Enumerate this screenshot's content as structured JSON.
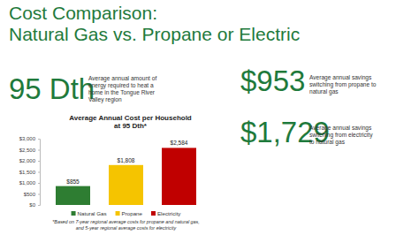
{
  "title": [
    "Cost Comparison:",
    "Natural Gas vs. Propane or Electric"
  ],
  "stats": [
    {
      "value_text": "95 Dth",
      "description": [
        "Average annual amount of",
        "energy required to heat a",
        "home in the Tongue River",
        "Valley region"
      ]
    },
    {
      "value_text": "$953",
      "description": [
        "Average annual savings",
        "switching from propane to",
        "natural gas"
      ]
    },
    {
      "value_text": "$1,729",
      "description": [
        "Average annual savings",
        "switching from electricity",
        "to natural gas"
      ]
    }
  ],
  "chart_data": {
    "type": "bar",
    "title": [
      "Average Annual Cost per Household",
      "at 95 Dth*"
    ],
    "categories": [
      "Natural Gas",
      "Propane",
      "Electricity"
    ],
    "values": [
      855,
      1808,
      2584
    ],
    "value_labels": [
      "$855",
      "$1,808",
      "$2,584"
    ],
    "colors": [
      "#2e7d32",
      "#f5c400",
      "#c00000"
    ],
    "ylim": [
      0,
      3000
    ],
    "yticks": [
      {
        "value": 0,
        "label": "$0"
      },
      {
        "value": 500,
        "label": "$500"
      },
      {
        "value": 1000,
        "label": "$1,000"
      },
      {
        "value": 1500,
        "label": "$1,500"
      },
      {
        "value": 2000,
        "label": "$2,000"
      },
      {
        "value": 2500,
        "label": "$2,500"
      },
      {
        "value": 3000,
        "label": "$3,000"
      }
    ],
    "grid": false,
    "legend": "bottom",
    "data_labels": true,
    "tick_labels": "y",
    "annotations": [
      "*Based on 7-year regional average costs for propane and natural gas,",
      "and 5-year regional average costs for electricity"
    ]
  }
}
